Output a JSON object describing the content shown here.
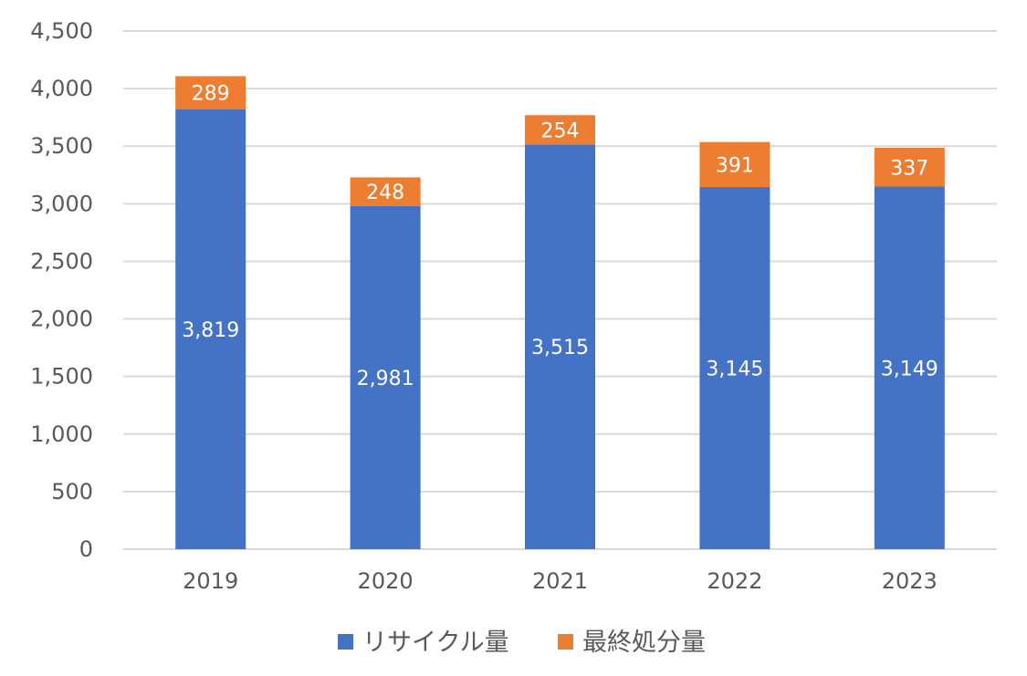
{
  "chart_data": {
    "type": "bar",
    "stacked": true,
    "categories": [
      "2019",
      "2020",
      "2021",
      "2022",
      "2023"
    ],
    "series": [
      {
        "name": "リサイクル量",
        "color": "#4472c4",
        "values": [
          3819,
          2981,
          3515,
          3145,
          3149
        ]
      },
      {
        "name": "最終処分量",
        "color": "#ed7d31",
        "values": [
          289,
          248,
          254,
          391,
          337
        ]
      }
    ],
    "title": "",
    "xlabel": "",
    "ylabel": "",
    "ylim": [
      0,
      4500
    ],
    "yticks": [
      "0",
      "500",
      "1,000",
      "1,500",
      "2,000",
      "2,500",
      "3,000",
      "3,500",
      "4,000",
      "4,500"
    ],
    "grid": true,
    "legend_position": "bottom-center"
  }
}
